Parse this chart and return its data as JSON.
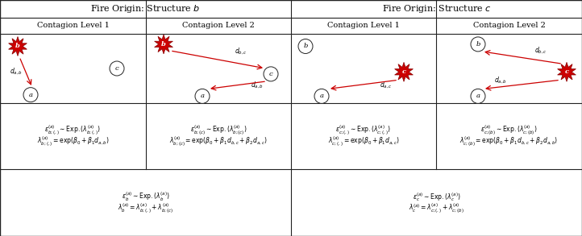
{
  "bg_color": "#ffffff",
  "border_color": "#222222",
  "header_b": "Fire Origin: Structure $b$",
  "header_c": "Fire Origin: Structure $c$",
  "sub_headers": [
    "Contagion Level 1",
    "Contagion Level 2",
    "Contagion Level 1",
    "Contagion Level 2"
  ],
  "formula_b_l1_line1": "$\\epsilon_{b;(.)}^{(a)} \\sim \\mathrm{Exp.}(\\lambda_{b;(.)}^{(a)})$",
  "formula_b_l1_line2": "$\\lambda_{b;(.)}^{(a)} = \\exp(\\beta_0 + \\beta_1 d_{a,b})$",
  "formula_b_l2_line1": "$\\epsilon_{b;(c)}^{(a)} \\sim \\mathrm{Exp.}(\\lambda_{b;(c)}^{(a)})$",
  "formula_b_l2_line2": "$\\lambda_{b;(c)}^{(a)} = \\exp(\\beta_0 + \\beta_1 d_{b,c} + \\beta_2 d_{a,c})$",
  "formula_c_l1_line1": "$\\epsilon_{c;(.)}^{(a)} \\sim \\mathrm{Exp.}(\\lambda_{c;(.)}^{(a)})$",
  "formula_c_l1_line2": "$\\lambda_{c;(.)}^{(a)} = \\exp(\\beta_0 + \\beta_1 d_{a,c})$",
  "formula_c_l2_line1": "$\\epsilon_{c;(b)}^{(a)} \\sim \\mathrm{Exp.}(\\lambda_{c;(b)}^{(a)})$",
  "formula_c_l2_line2": "$\\lambda_{c;(b)}^{(a)} = \\exp(\\beta_0 + \\beta_1 d_{b,c} + \\beta_2 d_{a,b})$",
  "formula_total_b_line1": "$\\epsilon_{b}^{(a)} \\sim \\mathrm{Exp.}(\\lambda_{b}^{(a)})$",
  "formula_total_b_line2": "$\\lambda_{b}^{(a)} = \\lambda_{b;(.)}^{(a)} + \\lambda_{b;(c)}^{(a)}$",
  "formula_total_c_line1": "$\\epsilon_{c}^{(a)} \\sim \\mathrm{Exp.}(\\lambda_{c}^{(a)})$",
  "formula_total_c_line2": "$\\lambda_{c}^{(a)} = \\lambda_{c;(.)}^{(a)} + \\lambda_{c;(b)}^{(a)}$",
  "fire_color": "#cc0000",
  "fire_edge_color": "#880000",
  "node_edge_color": "#222222",
  "node_fill": "#ffffff",
  "arrow_color": "#cc0000"
}
